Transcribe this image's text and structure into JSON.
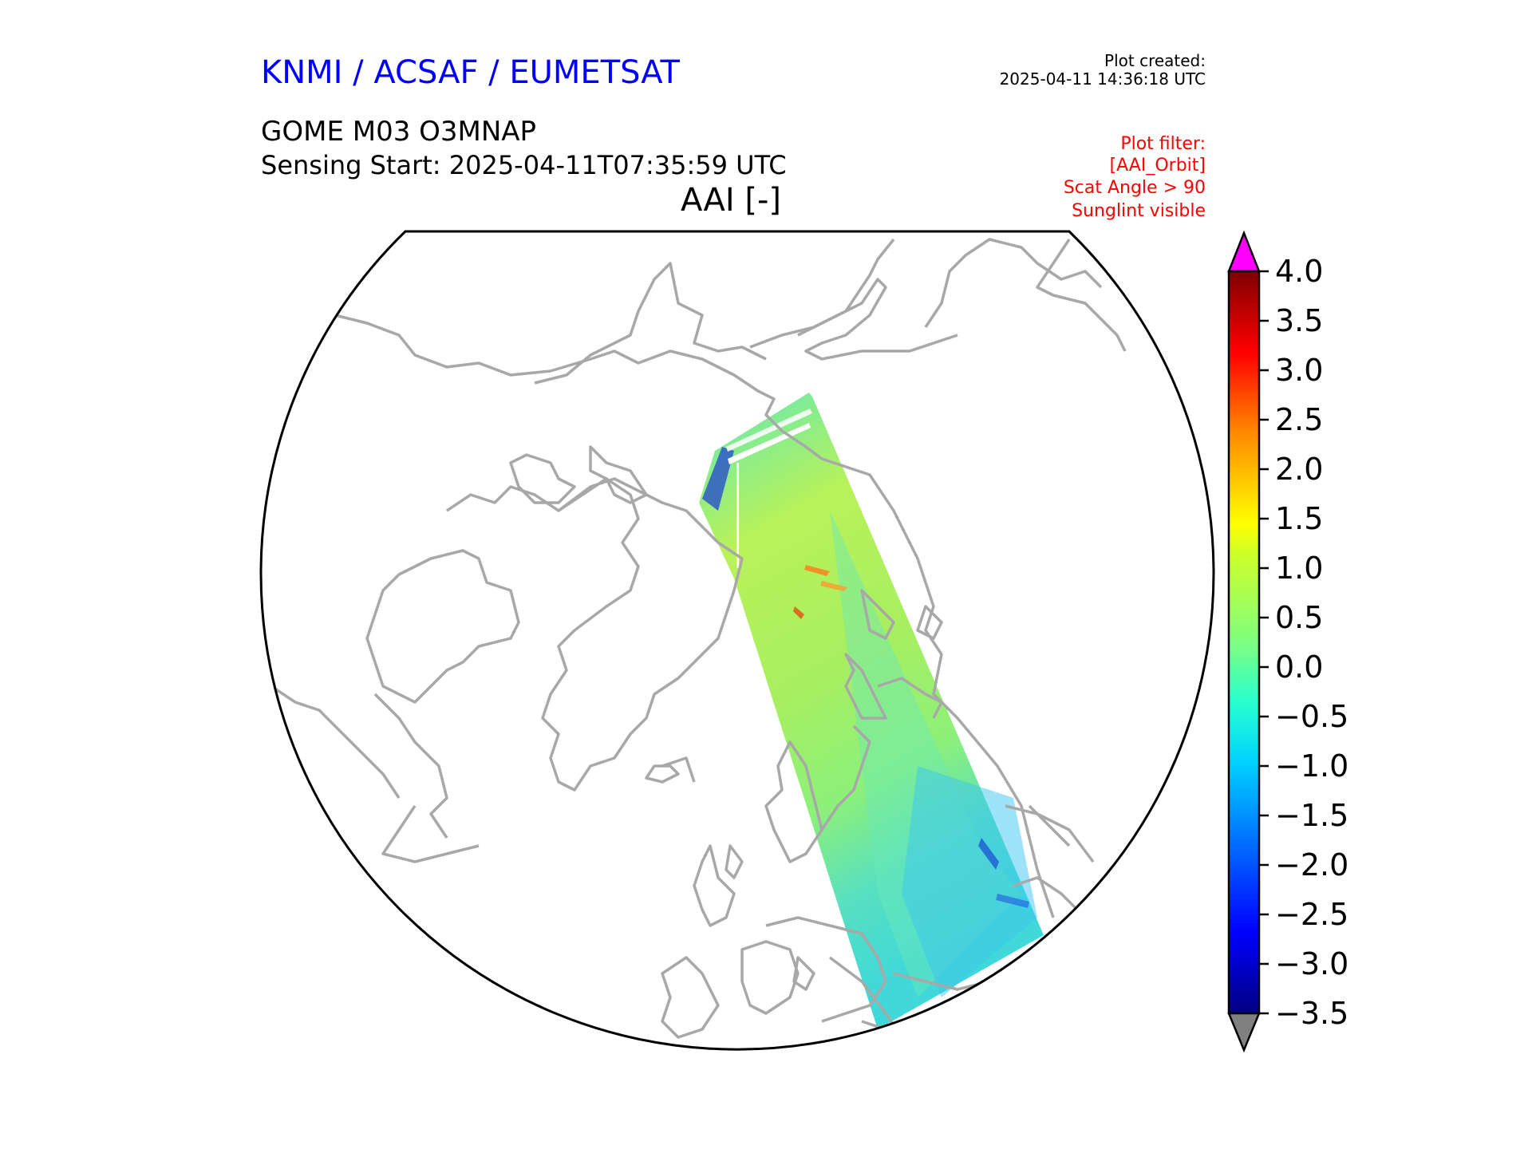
{
  "header": {
    "organization": "KNMI / ACSAF / EUMETSAT",
    "plot_created_label": "Plot created:",
    "plot_created_value": "2025-04-11 14:36:18 UTC",
    "instrument": "GOME M03 O3MNAP",
    "sensing_start": "Sensing Start: 2025-04-11T07:35:59 UTC",
    "parameter": "AAI [-]"
  },
  "filters": [
    "Plot filter:",
    "[AAI_Orbit]",
    "Scat Angle > 90",
    "Sunglint visible"
  ],
  "colorbar": {
    "min": -3.5,
    "max": 4.0,
    "ticks": [
      "4.0",
      "3.5",
      "3.0",
      "2.5",
      "2.0",
      "1.5",
      "1.0",
      "0.5",
      "0.0",
      "−0.5",
      "−1.0",
      "−1.5",
      "−2.0",
      "−2.5",
      "−3.0",
      "−3.5"
    ],
    "over_color": "#ff00ff",
    "under_color": "#808080",
    "colormap": [
      "#00007f",
      "#0000ff",
      "#007fff",
      "#00ffff",
      "#7fff7f",
      "#ffff00",
      "#ff7f00",
      "#ff0000",
      "#7f0000"
    ]
  },
  "map": {
    "projection": "north polar stereographic",
    "coastline_color": "#a8a8a8",
    "swath_colors": [
      "#a6f55a",
      "#6ff29a",
      "#4ee6c8",
      "#38bdf0"
    ]
  }
}
